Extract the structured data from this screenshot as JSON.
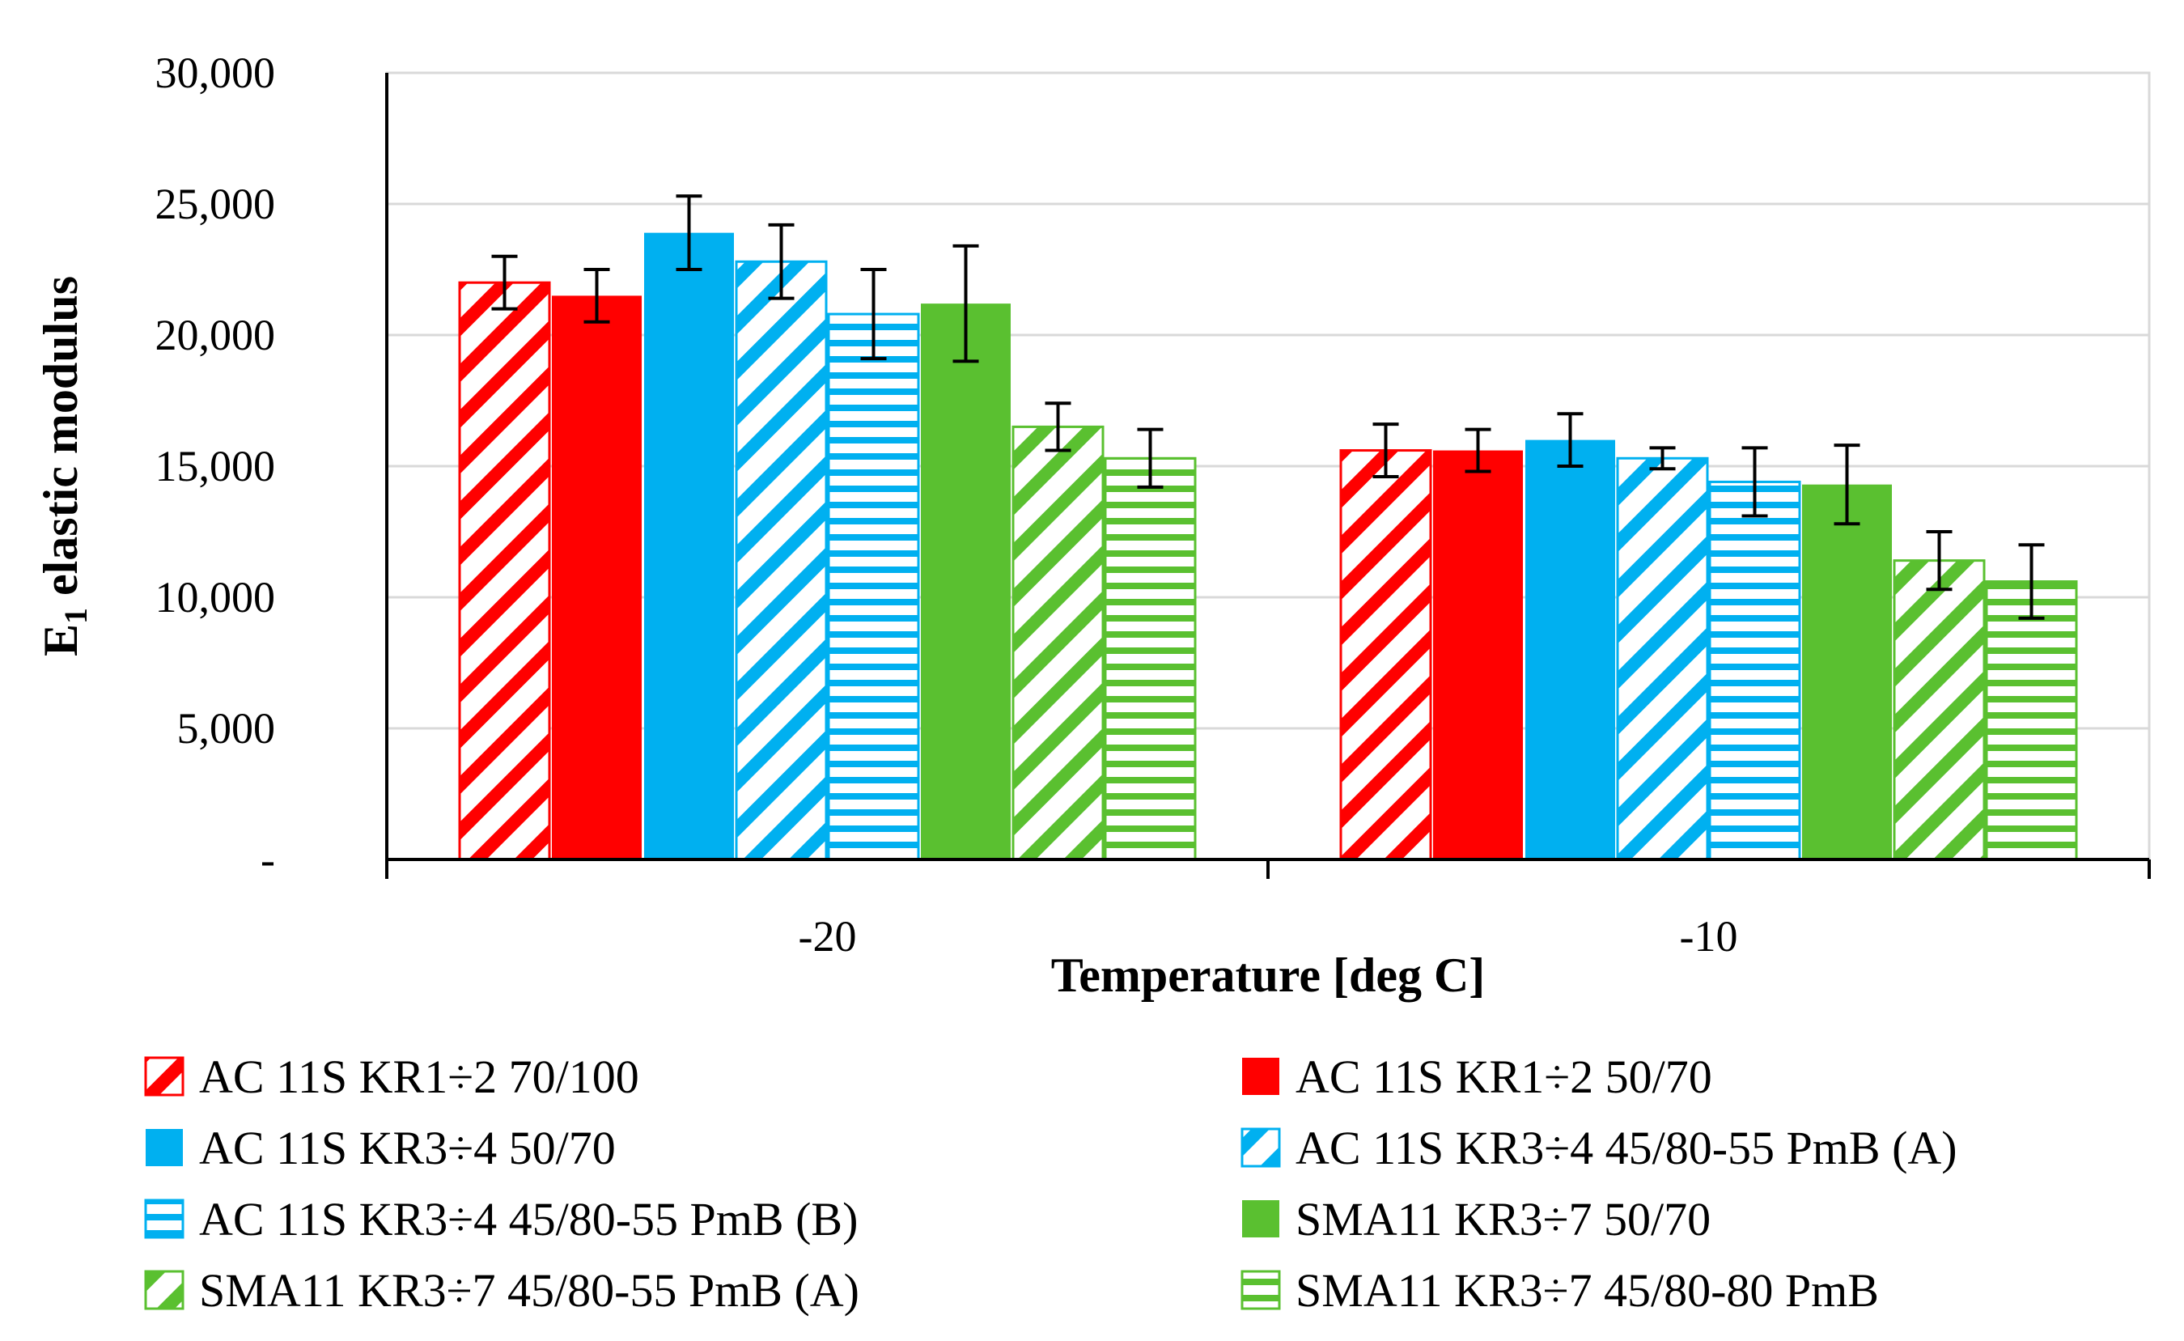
{
  "chart_data": {
    "type": "bar",
    "title": "",
    "xlabel": "Temperature [deg C]",
    "ylabel_main": "E",
    "ylabel_sub": "1",
    "ylabel_rest": " elastic modulus",
    "ylim": [
      0,
      30000
    ],
    "y_ticks": [
      0,
      5000,
      10000,
      15000,
      20000,
      25000,
      30000
    ],
    "y_tick_labels": [
      "-",
      "5,000",
      "10,000",
      "15,000",
      "20,000",
      "25,000",
      "30,000"
    ],
    "categories": [
      "-20",
      "-10"
    ],
    "grid": true,
    "legend_position": "bottom",
    "series": [
      {
        "name": "AC 11S KR1÷2 70/100",
        "color": "#ff0000",
        "pattern": "diag",
        "values": [
          22000,
          15600
        ],
        "errors": [
          1000,
          1000
        ]
      },
      {
        "name": "AC 11S KR1÷2 50/70",
        "color": "#ff0000",
        "pattern": "solid",
        "values": [
          21500,
          15600
        ],
        "errors": [
          1000,
          800
        ]
      },
      {
        "name": "AC 11S KR3÷4 50/70",
        "color": "#00b0f0",
        "pattern": "solid",
        "values": [
          23900,
          16000
        ],
        "errors": [
          1400,
          1000
        ]
      },
      {
        "name": "AC 11S KR3÷4 45/80-55 PmB (A)",
        "color": "#00b0f0",
        "pattern": "diag",
        "values": [
          22800,
          15300
        ],
        "errors": [
          1400,
          400
        ]
      },
      {
        "name": "AC 11S KR3÷4 45/80-55 PmB (B)",
        "color": "#00b0f0",
        "pattern": "horiz",
        "values": [
          20800,
          14400
        ],
        "errors": [
          1700,
          1300
        ]
      },
      {
        "name": "SMA11 KR3÷7 50/70",
        "color": "#5ac030",
        "pattern": "solid",
        "values": [
          21200,
          14300
        ],
        "errors": [
          2200,
          1500
        ]
      },
      {
        "name": "SMA11 KR3÷7 45/80-55 PmB (A)",
        "color": "#5ac030",
        "pattern": "diag",
        "values": [
          16500,
          11400
        ],
        "errors": [
          900,
          1100
        ]
      },
      {
        "name": "SMA11 KR3÷7 45/80-80 PmB",
        "color": "#5ac030",
        "pattern": "horiz",
        "values": [
          15300,
          10600
        ],
        "errors": [
          1100,
          1400
        ]
      }
    ]
  }
}
